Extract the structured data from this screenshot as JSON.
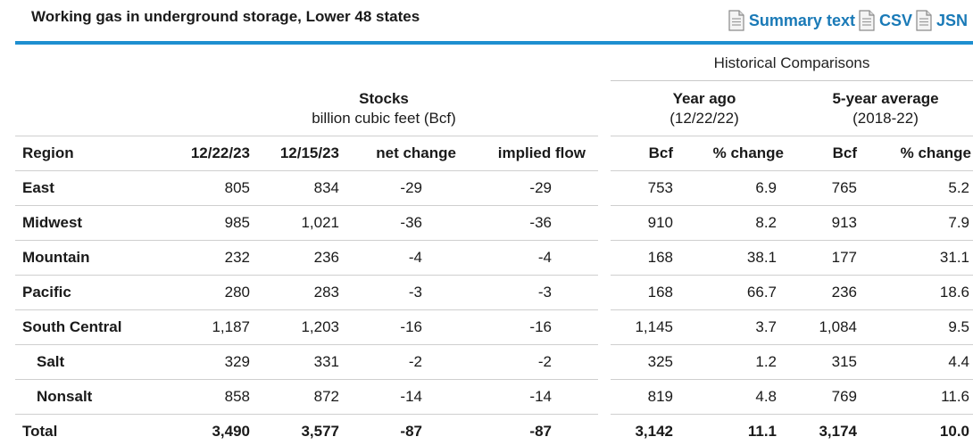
{
  "title": "Working gas in underground storage, Lower 48 states",
  "links": [
    "Summary text",
    "CSV",
    "JSN"
  ],
  "colors": {
    "accent": "#1e8fd0",
    "link": "#1a7ab7"
  },
  "groups": {
    "historical": "Historical Comparisons",
    "stocks_title": "Stocks",
    "stocks_sub": "billion cubic feet (Bcf)",
    "year_ago_title": "Year ago",
    "year_ago_sub": "(12/22/22)",
    "five_year_title": "5-year average",
    "five_year_sub": "(2018-22)"
  },
  "columns": [
    "Region",
    "12/22/23",
    "12/15/23",
    "net change",
    "implied flow",
    "Bcf",
    "% change",
    "Bcf",
    "% change"
  ],
  "rows": [
    {
      "region": "East",
      "sub": false,
      "cells": [
        "805",
        "834",
        "-29",
        "-29",
        "753",
        "6.9",
        "765",
        "5.2"
      ]
    },
    {
      "region": "Midwest",
      "sub": false,
      "cells": [
        "985",
        "1,021",
        "-36",
        "-36",
        "910",
        "8.2",
        "913",
        "7.9"
      ]
    },
    {
      "region": "Mountain",
      "sub": false,
      "cells": [
        "232",
        "236",
        "-4",
        "-4",
        "168",
        "38.1",
        "177",
        "31.1"
      ]
    },
    {
      "region": "Pacific",
      "sub": false,
      "cells": [
        "280",
        "283",
        "-3",
        "-3",
        "168",
        "66.7",
        "236",
        "18.6"
      ]
    },
    {
      "region": "South Central",
      "sub": false,
      "cells": [
        "1,187",
        "1,203",
        "-16",
        "-16",
        "1,145",
        "3.7",
        "1,084",
        "9.5"
      ]
    },
    {
      "region": "Salt",
      "sub": true,
      "cells": [
        "329",
        "331",
        "-2",
        "-2",
        "325",
        "1.2",
        "315",
        "4.4"
      ]
    },
    {
      "region": "Nonsalt",
      "sub": true,
      "cells": [
        "858",
        "872",
        "-14",
        "-14",
        "819",
        "4.8",
        "769",
        "11.6"
      ]
    },
    {
      "region": "Total",
      "sub": false,
      "total": true,
      "cells": [
        "3,490",
        "3,577",
        "-87",
        "-87",
        "3,142",
        "11.1",
        "3,174",
        "10.0"
      ]
    }
  ]
}
